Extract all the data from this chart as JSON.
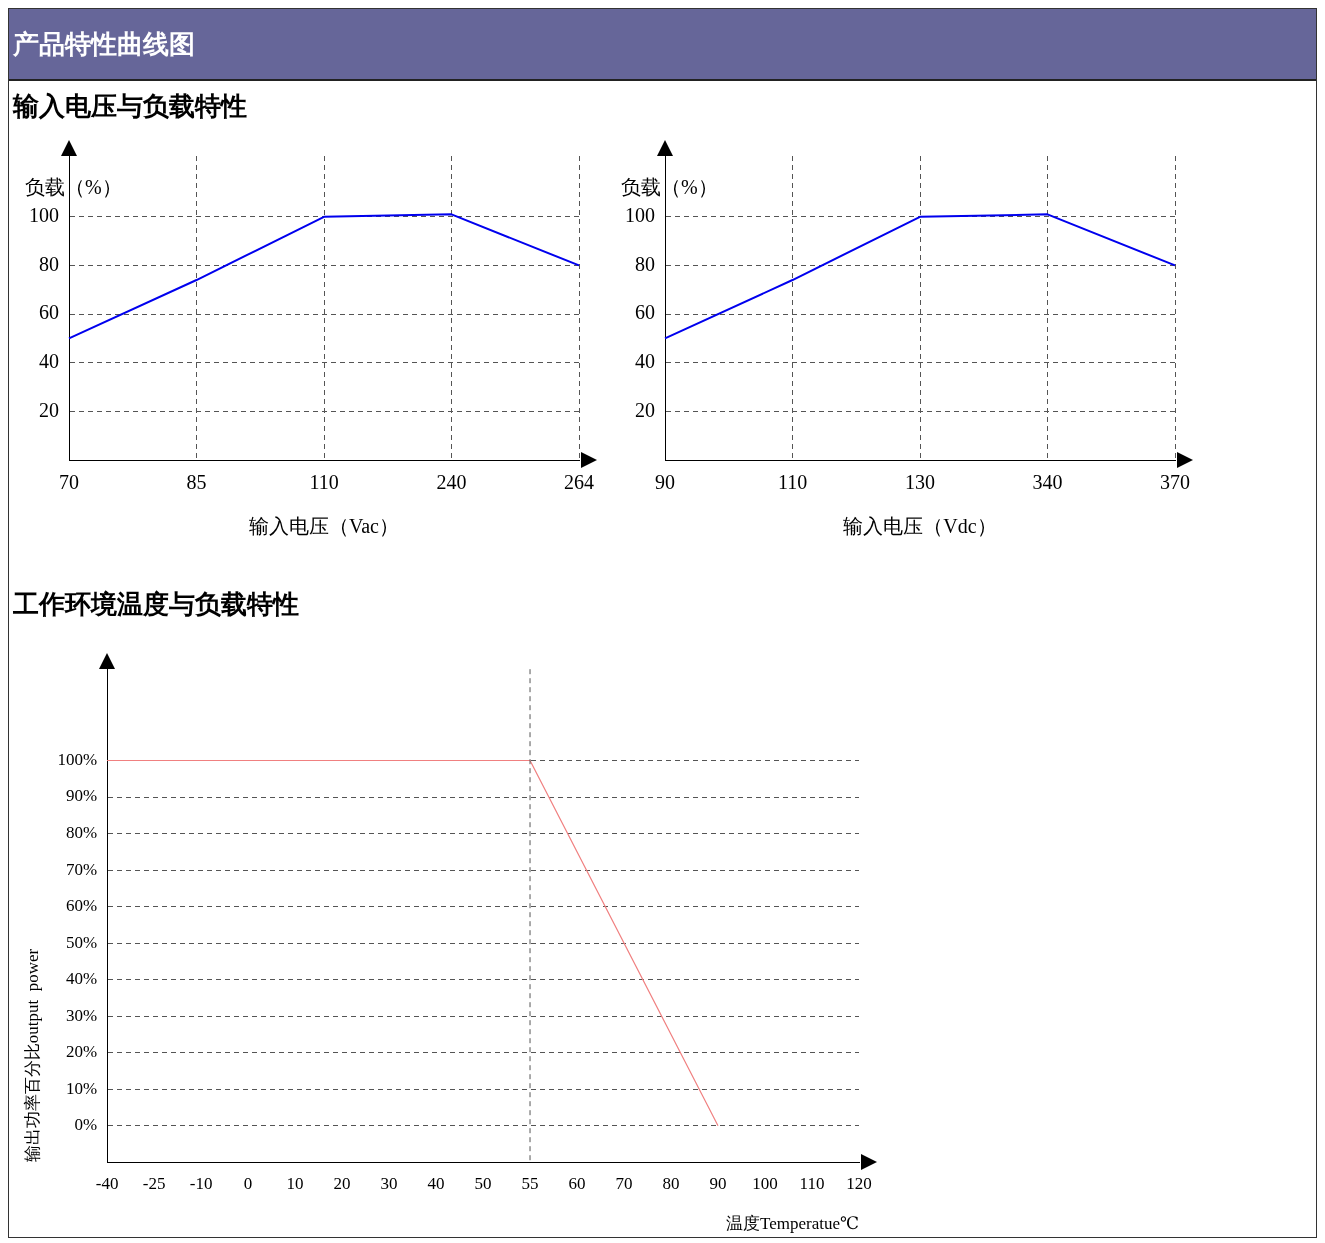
{
  "chart_data": [
    {
      "type": "line",
      "title": "产品特性曲线图",
      "subtitle": "输入电压与负载特性",
      "xlabel": "输入电压（Vac）",
      "ylabel": "负载（%）",
      "categories": [
        "70",
        "85",
        "110",
        "240",
        "264"
      ],
      "series": [
        {
          "color": "#0000ee",
          "values": [
            50,
            74,
            100,
            101,
            80
          ]
        }
      ],
      "ylim": [
        0,
        125
      ],
      "yticks": [
        20,
        40,
        60,
        80,
        100
      ],
      "grid": true,
      "marker": "none"
    },
    {
      "type": "line",
      "xlabel": "输入电压（Vdc）",
      "ylabel": "负载（%）",
      "categories": [
        "90",
        "110",
        "130",
        "340",
        "370"
      ],
      "series": [
        {
          "color": "#0000ee",
          "values": [
            50,
            74,
            100,
            101,
            80
          ]
        }
      ],
      "ylim": [
        0,
        125
      ],
      "yticks": [
        20,
        40,
        60,
        80,
        100
      ],
      "grid": true,
      "marker": "none"
    },
    {
      "type": "line",
      "title": "工作环境温度与负载特性",
      "xlabel": "温度Temperatue℃",
      "ylabel": "输出功率百分比output  power",
      "categories": [
        "-40",
        "-25",
        "-10",
        "0",
        "10",
        "20",
        "30",
        "40",
        "50",
        "55",
        "60",
        "70",
        "80",
        "90",
        "100",
        "110",
        "120"
      ],
      "series": [
        {
          "color": "#f08080",
          "values": [
            100,
            null,
            null,
            null,
            null,
            null,
            null,
            null,
            null,
            100,
            null,
            null,
            null,
            0,
            null,
            null,
            null
          ]
        }
      ],
      "ylim": [
        -10,
        125
      ],
      "yticks": [
        {
          "value": 0,
          "label": "0%"
        },
        {
          "value": 10,
          "label": "10%"
        },
        {
          "value": 20,
          "label": "20%"
        },
        {
          "value": 30,
          "label": "30%"
        },
        {
          "value": 40,
          "label": "40%"
        },
        {
          "value": 50,
          "label": "50%"
        },
        {
          "value": 60,
          "label": "60%"
        },
        {
          "value": 70,
          "label": "70%"
        },
        {
          "value": 80,
          "label": "80%"
        },
        {
          "value": 90,
          "label": "90%"
        },
        {
          "value": 100,
          "label": "100%"
        }
      ],
      "grid": "y",
      "marker": "none",
      "ref_lines": [
        {
          "axis": "x",
          "value": "55",
          "color": "#555555",
          "line_style": "dashed"
        }
      ]
    }
  ]
}
